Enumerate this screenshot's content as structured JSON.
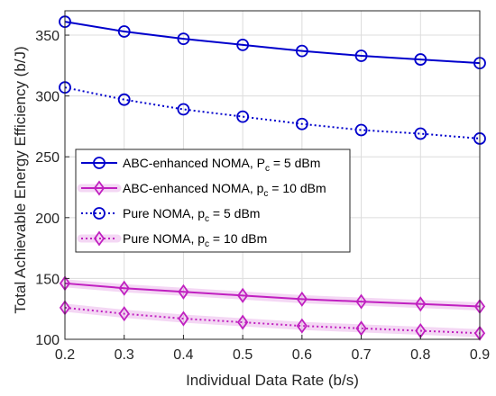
{
  "chart_data": {
    "type": "line",
    "xlabel": "Individual Data Rate (b/s)",
    "ylabel": "Total Achievable Energy Efficiency (b/J)",
    "xlim": [
      0.2,
      0.9
    ],
    "ylim": [
      100,
      370
    ],
    "x": [
      0.2,
      0.3,
      0.4,
      0.5,
      0.6,
      0.7,
      0.8,
      0.9
    ],
    "xticks": [
      "0.2",
      "0.3",
      "0.4",
      "0.5",
      "0.6",
      "0.7",
      "0.8",
      "0.9"
    ],
    "yticks": [
      "100",
      "150",
      "200",
      "250",
      "300",
      "350"
    ],
    "ytick_values": [
      100,
      150,
      200,
      250,
      300,
      350
    ],
    "grid": true,
    "legend_placement": "center-left",
    "series": [
      {
        "name": "ABC-enhanced NOMA, P_c = 5 dBm",
        "legend_main": "ABC-enhanced NOMA, P",
        "legend_sub": "c",
        "legend_tail": " = 5 dBm",
        "color": "#0000cc",
        "line": "solid",
        "marker": "circle",
        "values": [
          361,
          353,
          347,
          342,
          337,
          333,
          330,
          327
        ]
      },
      {
        "name": "ABC-enhanced NOMA, p_c = 10 dBm",
        "legend_main": "ABC-enhanced NOMA, p",
        "legend_sub": "c",
        "legend_tail": " = 10 dBm",
        "color": "#c020c0",
        "line": "solid",
        "marker": "diamond",
        "values": [
          146,
          142,
          139,
          136,
          133,
          131,
          129,
          127
        ]
      },
      {
        "name": "Pure NOMA, p_c = 5 dBm",
        "legend_main": "Pure NOMA, p",
        "legend_sub": "c",
        "legend_tail": " = 5 dBm",
        "color": "#0000cc",
        "line": "dotted",
        "marker": "circle",
        "values": [
          307,
          297,
          289,
          283,
          277,
          272,
          269,
          265
        ]
      },
      {
        "name": "Pure NOMA, p_c = 10 dBm",
        "legend_main": "Pure NOMA, p",
        "legend_sub": "c",
        "legend_tail": " = 10 dBm",
        "color": "#c020c0",
        "line": "dotted",
        "marker": "diamond",
        "values": [
          126,
          121,
          117,
          114,
          111,
          109,
          107,
          105
        ]
      }
    ]
  }
}
